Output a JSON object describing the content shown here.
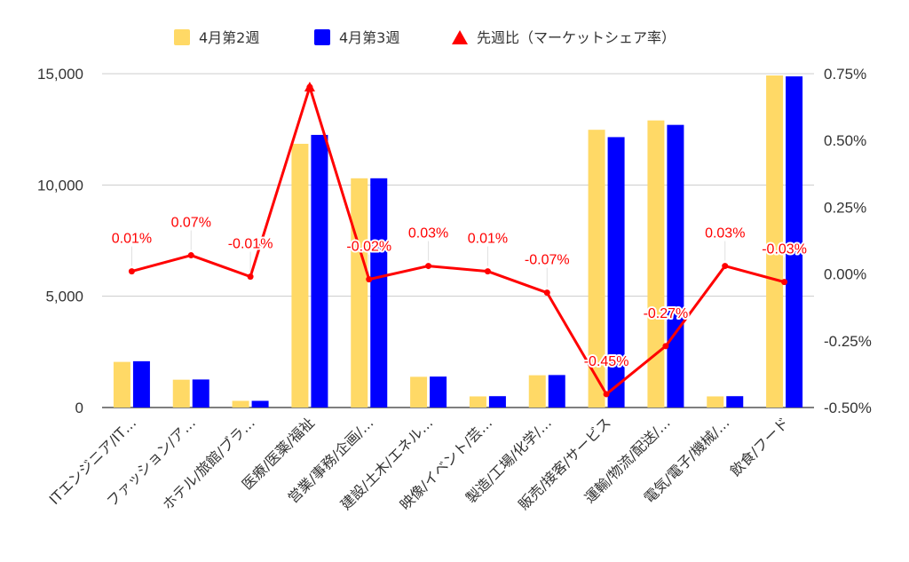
{
  "chart_data": {
    "type": "bar",
    "categories": [
      "ITエンジニア/IT…",
      "ファッション/ア…",
      "ホテル/旅館/ブラ…",
      "医療/医薬/福祉",
      "営業/事務/企画/…",
      "建設/土木/エネル…",
      "映像/イベント/芸…",
      "製造/工場/化学/…",
      "販売/接客/サービス",
      "運輸/物流/配送/…",
      "電気/電子/機械/…",
      "飲食/フード"
    ],
    "series": [
      {
        "name": "4月第2週",
        "type": "bar",
        "axis": "left",
        "color": "#ffd966",
        "values": [
          2050,
          1250,
          300,
          11850,
          10300,
          1380,
          500,
          1450,
          12480,
          12900,
          500,
          14920
        ]
      },
      {
        "name": "4月第3週",
        "type": "bar",
        "axis": "left",
        "color": "#0000ff",
        "values": [
          2080,
          1260,
          300,
          12250,
          10300,
          1390,
          510,
          1460,
          12150,
          12700,
          510,
          14880
        ]
      },
      {
        "name": "先週比（マーケットシェア率）",
        "type": "line",
        "axis": "right",
        "color": "#ff0000",
        "values": [
          0.01,
          0.07,
          -0.01,
          0.7,
          -0.02,
          0.03,
          0.01,
          -0.07,
          -0.45,
          -0.27,
          0.03,
          -0.03
        ],
        "labels": [
          "0.01%",
          "0.07%",
          "-0.01%",
          "",
          "-0.02%",
          "0.03%",
          "0.01%",
          "-0.07%",
          "-0.45%",
          "-0.27%",
          "0.03%",
          "-0.03%"
        ]
      }
    ],
    "y_left": {
      "min": 0,
      "max": 15000,
      "ticks": [
        0,
        5000,
        10000,
        15000
      ],
      "tick_labels": [
        "0",
        "5,000",
        "10,000",
        "15,000"
      ]
    },
    "y_right": {
      "min": -0.5,
      "max": 0.75,
      "ticks": [
        -0.5,
        -0.25,
        0,
        0.25,
        0.5,
        0.75
      ],
      "tick_labels": [
        "-0.50%",
        "-0.25%",
        "0.00%",
        "0.25%",
        "0.50%",
        "0.75%"
      ]
    },
    "grid": true,
    "legend_position": "top-center",
    "title": "",
    "xlabel": "",
    "ylabel": ""
  }
}
